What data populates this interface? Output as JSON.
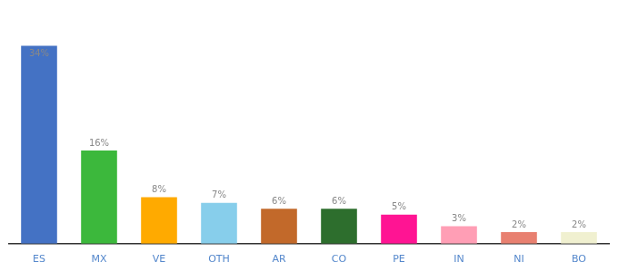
{
  "chart_data": {
    "type": "bar",
    "categories": [
      "ES",
      "MX",
      "VE",
      "OTH",
      "AR",
      "CO",
      "PE",
      "IN",
      "NI",
      "BO"
    ],
    "values": [
      34,
      16,
      8,
      7,
      6,
      6,
      5,
      3,
      2,
      2
    ],
    "value_labels": [
      "34%",
      "16%",
      "8%",
      "7%",
      "6%",
      "6%",
      "5%",
      "3%",
      "2%",
      "2%"
    ],
    "colors": [
      "#4472c4",
      "#3cb83c",
      "#ffaa00",
      "#87ceeb",
      "#c2692a",
      "#2d6e2d",
      "#ff1493",
      "#ff9eb5",
      "#e88070",
      "#f0f0d0"
    ],
    "ylim": [
      0,
      40
    ],
    "grid": false,
    "data_labels": true,
    "tick_labels": "x"
  }
}
